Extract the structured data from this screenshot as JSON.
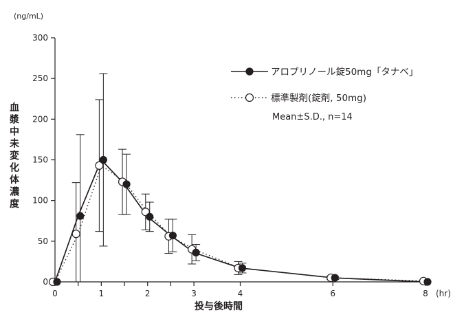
{
  "chart_data": {
    "type": "line",
    "ylabel": "血漿中未変化体濃度",
    "y_unit": "(ng/mL)",
    "xlabel": "投与後時間",
    "x_unit": "(hr)",
    "ylim": [
      0,
      300
    ],
    "xlim": [
      0,
      8
    ],
    "yticks": [
      0,
      50,
      100,
      150,
      200,
      250,
      300
    ],
    "xticks_labeled": [
      0,
      1,
      2,
      3,
      4,
      6,
      8
    ],
    "xticks_minor": [
      0.5,
      1.5,
      2.5
    ],
    "grid": false,
    "legend_position": "top-right",
    "legend_note": "Mean±S.D., n=14",
    "series": [
      {
        "name": "アロプリノール錠50mg「タナベ」",
        "marker": "filled-circle",
        "line_style": "solid",
        "color": "#231f20",
        "x": [
          0,
          0.5,
          1,
          1.5,
          2,
          2.5,
          3,
          4,
          6,
          8
        ],
        "y": [
          0,
          81,
          150,
          120,
          80,
          57,
          36,
          17,
          5,
          0
        ],
        "sd": [
          0,
          100,
          106,
          37,
          18,
          20,
          10,
          6,
          2,
          0
        ]
      },
      {
        "name": "標準製剤(錠剤, 50mg)",
        "marker": "open-circle",
        "line_style": "dotted",
        "color": "#231f20",
        "x": [
          0,
          0.5,
          1,
          1.5,
          2,
          2.5,
          3,
          4,
          6,
          8
        ],
        "y": [
          0,
          59,
          143,
          123,
          86,
          56,
          40,
          17,
          5,
          1
        ],
        "sd": [
          0,
          63,
          81,
          40,
          22,
          21,
          18,
          8,
          2,
          0
        ]
      }
    ]
  }
}
